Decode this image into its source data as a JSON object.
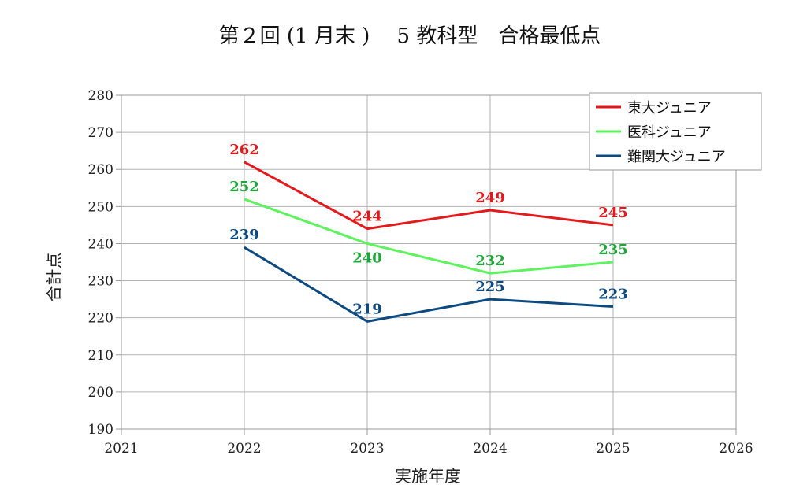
{
  "chart_data": {
    "type": "line",
    "title": "第２回 (1 月末 )　 5 教科型　合格最低点",
    "xlabel": "実施年度",
    "ylabel": "合計点",
    "xlim": [
      2021,
      2026
    ],
    "ylim": [
      190,
      280
    ],
    "x_ticks": [
      2021,
      2022,
      2023,
      2024,
      2025,
      2026
    ],
    "y_ticks": [
      190,
      200,
      210,
      220,
      230,
      240,
      250,
      260,
      270,
      280
    ],
    "grid": true,
    "legend_position": "top-right",
    "x": [
      2022,
      2023,
      2024,
      2025
    ],
    "series": [
      {
        "name": "東大ジュニア",
        "color": "#e31a1c",
        "label_color": "#e31a1c",
        "values": [
          262,
          244,
          249,
          245
        ]
      },
      {
        "name": "医科ジュニア",
        "color": "#5ef25e",
        "label_color": "#1fa83a",
        "values": [
          252,
          240,
          232,
          235
        ]
      },
      {
        "name": "難関大ジュニア",
        "color": "#0d4a80",
        "label_color": "#0d4a80",
        "values": [
          239,
          219,
          225,
          223
        ]
      }
    ]
  }
}
